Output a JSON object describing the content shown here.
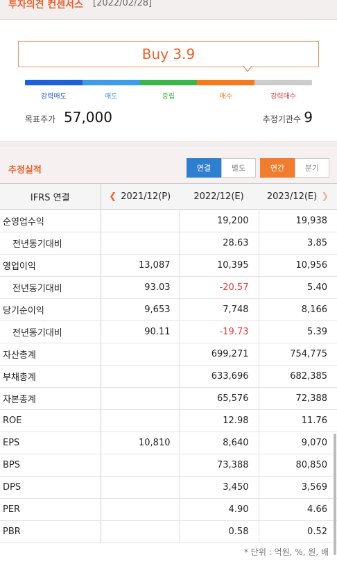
{
  "consensus": {
    "title": "투자의견 컨센서스",
    "date": "[2022/02/28]",
    "rating": "Buy 3.9",
    "scale": [
      {
        "label": "강력매도",
        "color": "#1f5fd8"
      },
      {
        "label": "매도",
        "color": "#3e9be8"
      },
      {
        "label": "중립",
        "color": "#3db54a"
      },
      {
        "label": "매수",
        "color": "#f47a20"
      },
      {
        "label": "강력매수",
        "color": "#cccccc"
      }
    ],
    "label_colors": [
      "#1f5fd8",
      "#3e9be8",
      "#3db54a",
      "#f47a20",
      "#e23b3b"
    ],
    "target_price_label": "목표주가",
    "target_price": "57,000",
    "institutions_label": "추정기관수",
    "institutions": "9"
  },
  "estimates": {
    "title": "추정실적",
    "toggle_scope": [
      "연결",
      "별도"
    ],
    "toggle_period": [
      "연간",
      "분기"
    ],
    "columns": [
      "IFRS 연결",
      "2021/12(P)",
      "2022/12(E)",
      "2023/12(E)"
    ],
    "rows": [
      {
        "label": "순영업수익",
        "sub": false,
        "values": [
          "",
          "19,200",
          "19,938"
        ]
      },
      {
        "label": "전년동기대비",
        "sub": true,
        "values": [
          "",
          "28.63",
          "3.85"
        ]
      },
      {
        "label": "영업이익",
        "sub": false,
        "values": [
          "13,087",
          "10,395",
          "10,956"
        ]
      },
      {
        "label": "전년동기대비",
        "sub": true,
        "values": [
          "93.03",
          "-20.57",
          "5.40"
        ]
      },
      {
        "label": "당기순이익",
        "sub": false,
        "values": [
          "9,653",
          "7,748",
          "8,166"
        ]
      },
      {
        "label": "전년동기대비",
        "sub": true,
        "values": [
          "90.11",
          "-19.73",
          "5.39"
        ]
      },
      {
        "label": "자산총계",
        "sub": false,
        "values": [
          "",
          "699,271",
          "754,775"
        ]
      },
      {
        "label": "부채총계",
        "sub": false,
        "values": [
          "",
          "633,696",
          "682,385"
        ]
      },
      {
        "label": "자본총계",
        "sub": false,
        "values": [
          "",
          "65,576",
          "72,388"
        ]
      },
      {
        "label": "ROE",
        "sub": false,
        "values": [
          "",
          "12.98",
          "11.76"
        ]
      },
      {
        "label": "EPS",
        "sub": false,
        "values": [
          "10,810",
          "8,640",
          "9,070"
        ]
      },
      {
        "label": "BPS",
        "sub": false,
        "values": [
          "",
          "73,388",
          "80,850"
        ]
      },
      {
        "label": "DPS",
        "sub": false,
        "values": [
          "",
          "3,450",
          "3,569"
        ]
      },
      {
        "label": "PER",
        "sub": false,
        "values": [
          "",
          "4.90",
          "4.66"
        ]
      },
      {
        "label": "PBR",
        "sub": false,
        "values": [
          "",
          "0.58",
          "0.52"
        ]
      }
    ],
    "unit_note": "* 단위 : 억원, %, 원, 배"
  }
}
